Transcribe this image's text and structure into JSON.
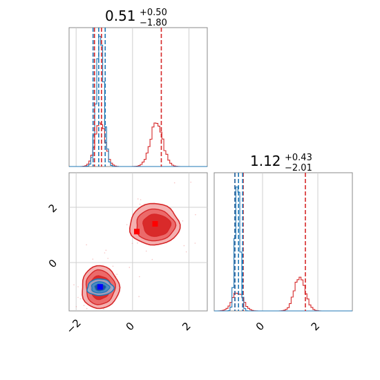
{
  "chart_data": {
    "type": "corner",
    "params": [
      "p0",
      "p1"
    ],
    "axis_ranges": {
      "p0": [
        -2.25,
        2.65
      ],
      "p1": [
        -1.75,
        3.25
      ]
    },
    "ticks": {
      "p0": {
        "values": [
          -2,
          0,
          2
        ],
        "labels": [
          "−2",
          "0",
          "2"
        ]
      },
      "p1": {
        "values": [
          0,
          2
        ],
        "labels": [
          "0",
          "2"
        ]
      }
    },
    "grid": true,
    "panel_titles": [
      {
        "param": "p0",
        "value": "0.51",
        "plus": "+0.50",
        "minus": "−1.80"
      },
      {
        "param": "p1",
        "value": "1.12",
        "plus": "+0.43",
        "minus": "−2.01"
      }
    ],
    "series": [
      {
        "color": "#d62728",
        "quantiles_p0": [
          -1.35,
          -1.1,
          1.02
        ],
        "quantiles_p1": [
          -1.0,
          -0.7,
          1.55
        ],
        "markers": [
          {
            "x": 0.8,
            "y": 1.4
          },
          {
            "x": 0.15,
            "y": 1.12
          }
        ],
        "modes": [
          {
            "center": [
              -1.15,
              -0.9
            ],
            "weight": 0.45
          },
          {
            "center": [
              0.85,
              1.35
            ],
            "weight": 0.55
          }
        ]
      },
      {
        "color": "#1f77b4",
        "quantiles_p0": [
          -1.4,
          -1.2,
          -0.97
        ],
        "quantiles_p1": [
          -1.0,
          -0.87,
          -0.72
        ],
        "markers": [
          {
            "x": -1.15,
            "y": -0.88
          }
        ],
        "modes": [
          {
            "center": [
              -1.15,
              -0.9
            ],
            "weight": 1.0
          }
        ]
      }
    ]
  }
}
